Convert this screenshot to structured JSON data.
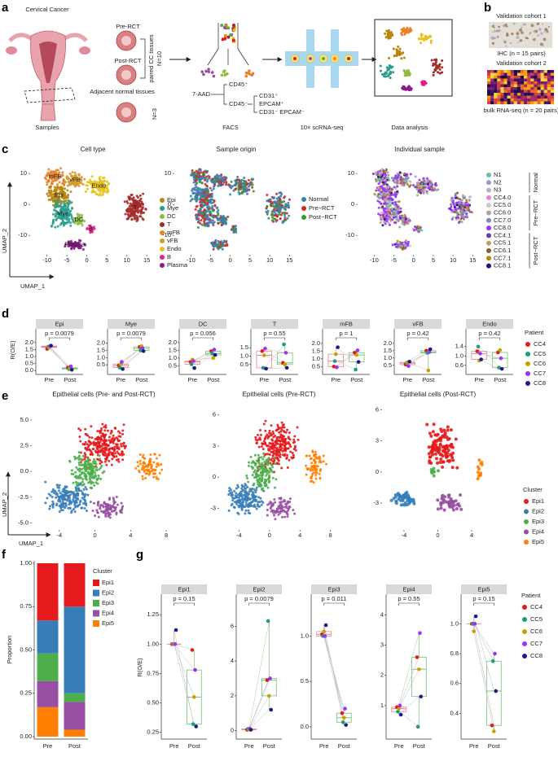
{
  "a": {
    "label": "a",
    "organ": "Cervical Cancer",
    "samples": "Samples",
    "pre": "Pre-RCT",
    "post": "Post-RCT",
    "paired": "paired CC tissues",
    "n10": "N=10",
    "adjacent": "Adjacent normal tissues",
    "n3": "N=3",
    "aad": "7-AAD",
    "cd45p": "CD45⁺",
    "cd45m": "CD45⁻",
    "cd31p": "CD31⁺",
    "epcamp": "EPCAM⁺",
    "cd31epcam": "CD31⁻ EPCAM⁻",
    "facs": "FACS",
    "seq": "10× scRNA-seq",
    "analysis": "Data analysis"
  },
  "b": {
    "label": "b",
    "cohort1": "Validation cohort 1",
    "ihc": "IHC (n = 15 pairs)",
    "cohort2": "Validation cohort 2",
    "bulk": "bulk RNA-seq (n = 20 pairs)"
  },
  "c": {
    "label": "c",
    "titles": [
      "Cell type",
      "Sample origin",
      "Individual sample"
    ],
    "xlabel": "UMAP_1",
    "ylabel": "UMAP_2",
    "xlim": [
      -14,
      17
    ],
    "ylim": [
      -16,
      14
    ],
    "xticks": [
      -10,
      -5,
      0,
      5,
      10,
      15
    ],
    "yticks": [
      -10,
      0,
      10
    ],
    "cell_types": [
      {
        "name": "Epi",
        "color": "#b8860b",
        "x": -7,
        "y": 3
      },
      {
        "name": "Mye",
        "color": "#2a9d8f",
        "x": -6,
        "y": -3
      },
      {
        "name": "DC",
        "color": "#8fbc3f",
        "x": -2,
        "y": -5
      },
      {
        "name": "T",
        "color": "#a52a2a",
        "x": 12,
        "y": -1
      },
      {
        "name": "mFB",
        "color": "#e8822a",
        "x": -8,
        "y": 9
      },
      {
        "name": "vFB",
        "color": "#d49a2a",
        "x": -3,
        "y": 8
      },
      {
        "name": "Endo",
        "color": "#e8c21a",
        "x": 3,
        "y": 6
      },
      {
        "name": "B",
        "color": "#e0218a",
        "x": 1,
        "y": -8
      },
      {
        "name": "Plasma",
        "color": "#8b1a8b",
        "x": -3,
        "y": -13
      }
    ],
    "origins": [
      {
        "name": "Normal",
        "color": "#3b7db5"
      },
      {
        "name": "Pre−RCT",
        "color": "#d62728"
      },
      {
        "name": "Post−RCT",
        "color": "#2ca02c"
      }
    ],
    "sample_groups": [
      {
        "name": "Normal",
        "samples": [
          {
            "name": "N1",
            "color": "#66c2a5"
          },
          {
            "name": "N2",
            "color": "#8da0cb"
          },
          {
            "name": "N3",
            "color": "#b3b3cc"
          }
        ]
      },
      {
        "name": "Pre−RCT",
        "samples": [
          {
            "name": "CC4.0",
            "color": "#e78ac3"
          },
          {
            "name": "CC5.0",
            "color": "#c9c9c9"
          },
          {
            "name": "CC6.0",
            "color": "#a6a6a6"
          },
          {
            "name": "CC7.0",
            "color": "#7a8fa6"
          },
          {
            "name": "CC8.0",
            "color": "#9b30ff"
          }
        ]
      },
      {
        "name": "Post−RCT",
        "samples": [
          {
            "name": "CC4.1",
            "color": "#6a3d9a"
          },
          {
            "name": "CC5.1",
            "color": "#c49a6c"
          },
          {
            "name": "CC6.1",
            "color": "#8b5a2b"
          },
          {
            "name": "CC7.1",
            "color": "#b8860b"
          },
          {
            "name": "CC8.1",
            "color": "#1a1a6e"
          }
        ]
      }
    ]
  },
  "d": {
    "label": "d",
    "ylabel": "R(O/E)",
    "groups": [
      "Pre",
      "Post"
    ],
    "box_colors": [
      "#e8868e",
      "#79c279"
    ],
    "legend_title": "Patient",
    "patients": [
      {
        "name": "CC4",
        "color": "#e41a1c"
      },
      {
        "name": "CC5",
        "color": "#1b9e77"
      },
      {
        "name": "CC6",
        "color": "#c8a000"
      },
      {
        "name": "CC7",
        "color": "#9b30ff"
      },
      {
        "name": "CC8",
        "color": "#1a1a8c"
      }
    ],
    "facets": [
      {
        "title": "Epi",
        "p": "p = 0.0079",
        "ylim": [
          -0.05,
          2.05
        ],
        "yticks": [
          {
            "value": 0,
            "label": "0.0"
          },
          0.5,
          {
            "value": 1,
            "label": "1.0"
          },
          1.5,
          {
            "value": 2,
            "label": "2.0"
          }
        ],
        "pre": [
          1.55,
          1.7,
          1.65,
          1.75,
          1.78
        ],
        "post": [
          0.2,
          0.1,
          0.15,
          0.3,
          0.05
        ]
      },
      {
        "title": "Mye",
        "p": "p = 0.0079",
        "ylim": [
          0.05,
          2.1
        ],
        "yticks": [
          0.5,
          {
            "value": 1,
            "label": "1.0"
          },
          1.5,
          {
            "value": 2,
            "label": "2.0"
          }
        ],
        "pre": [
          0.45,
          0.3,
          0.55,
          0.7,
          0.2
        ],
        "post": [
          1.75,
          1.5,
          1.8,
          1.65,
          1.45
        ]
      },
      {
        "title": "DC",
        "p": "p = 0.056",
        "ylim": [
          0.15,
          2.05
        ],
        "yticks": [
          0.5,
          {
            "value": 1,
            "label": "1.0"
          },
          1.5,
          {
            "value": 2,
            "label": "2.0"
          }
        ],
        "pre": [
          0.75,
          0.6,
          0.9,
          0.8,
          0.35
        ],
        "post": [
          1.45,
          1.3,
          1.0,
          1.55,
          1.2
        ]
      },
      {
        "title": "T",
        "p": "p = 0.55",
        "ylim": [
          0.1,
          1.85
        ],
        "yticks": [
          0.5,
          {
            "value": 1,
            "label": "1.0"
          },
          1.5
        ],
        "pre": [
          1.3,
          0.3,
          1.05,
          1.45,
          0.25
        ],
        "post": [
          0.6,
          1.7,
          0.5,
          1.2,
          0.3
        ]
      },
      {
        "title": "mFB",
        "p": "p = 1",
        "ylim": [
          0.2,
          2.1
        ],
        "yticks": [
          0.5,
          {
            "value": 1,
            "label": "1.0"
          },
          1.5,
          {
            "value": 2,
            "label": "2.0"
          }
        ],
        "pre": [
          0.5,
          0.85,
          1.3,
          0.45,
          1.75
        ],
        "post": [
          1.4,
          0.3,
          1.25,
          1.55,
          0.8
        ]
      },
      {
        "title": "vFB",
        "p": "p = 0.42",
        "ylim": [
          0.1,
          2.1
        ],
        "yticks": [
          0.5,
          {
            "value": 1,
            "label": "1.0"
          },
          1.5,
          {
            "value": 2,
            "label": "2.0"
          }
        ],
        "pre": [
          0.55,
          0.65,
          0.7,
          0.45,
          0.75
        ],
        "post": [
          1.5,
          1.35,
          0.15,
          1.4,
          1.6
        ]
      },
      {
        "title": "Endo",
        "p": "p = 0.42",
        "ylim": [
          0.35,
          1.6
        ],
        "yticks": [
          0.6,
          {
            "value": 1,
            "label": "1.0"
          },
          1.4
        ],
        "pre": [
          1.2,
          1.4,
          0.8,
          1.1,
          0.85
        ],
        "post": [
          1.15,
          0.5,
          1.25,
          0.9,
          0.45
        ]
      }
    ]
  },
  "e": {
    "label": "e",
    "xlabel": "UMAP_1",
    "ylabel": "UMAP_2",
    "legend_title": "Cluster",
    "clusters": [
      {
        "name": "Epi1",
        "color": "#e41a1c"
      },
      {
        "name": "Epi2",
        "color": "#377eb8"
      },
      {
        "name": "Epi3",
        "color": "#4daf4a"
      },
      {
        "name": "Epi4",
        "color": "#984ea3"
      },
      {
        "name": "Epi5",
        "color": "#ff7f00"
      }
    ],
    "plots": [
      {
        "title": "Epithelial cells (Pre- and Post-RCT)",
        "xlim": [
          -7,
          9
        ],
        "ylim": [
          -5.6,
          6.5
        ],
        "xticks": [
          -4,
          0,
          4,
          8
        ],
        "yticks": [
          {
            "value": -5,
            "label": "-5.0"
          },
          {
            "value": -2.5,
            "label": "-2.5"
          },
          {
            "value": 0,
            "label": "0.0"
          },
          {
            "value": 2.5,
            "label": "2.5"
          },
          {
            "value": 5,
            "label": "5.0"
          }
        ],
        "centers": [
          {
            "x": 1,
            "y": 2.5
          },
          {
            "x": -3,
            "y": -2.5
          },
          {
            "x": -1,
            "y": 0
          },
          {
            "x": 1.5,
            "y": -3.5
          },
          {
            "x": 6,
            "y": 0.5
          }
        ]
      },
      {
        "title": "Epithelial cells (Pre-RCT)",
        "xlim": [
          -6.5,
          9
        ],
        "ylim": [
          -5,
          7
        ],
        "xticks": [
          -4,
          0,
          4,
          8
        ],
        "yticks": [
          -3,
          0,
          3,
          6
        ],
        "centers": [
          {
            "x": 1,
            "y": 3
          },
          {
            "x": -3,
            "y": -2
          },
          {
            "x": -1,
            "y": 0.5
          },
          {
            "x": 1.5,
            "y": -3
          },
          {
            "x": 6,
            "y": 1
          }
        ]
      },
      {
        "title": "Epithelial cells (Post-RCT)",
        "xlim": [
          -6.5,
          6.5
        ],
        "ylim": [
          -5.5,
          6.5
        ],
        "xticks": [
          -4,
          0,
          4
        ],
        "yticks": [
          -3,
          0,
          3,
          6
        ],
        "centers": [
          {
            "x": 0.5,
            "y": 2.5
          },
          {
            "x": -4,
            "y": -2.5
          },
          {
            "x": -0.5,
            "y": 0
          },
          {
            "x": 1.5,
            "y": -3
          },
          {
            "x": 5,
            "y": 0
          }
        ]
      }
    ]
  },
  "f": {
    "label": "f",
    "ylabel": "Proportion",
    "legend_title": "Cluster",
    "categories": [
      "Pre",
      "Post"
    ],
    "ylim": [
      0,
      1
    ],
    "yticks": [
      {
        "value": 0,
        "label": "0.00"
      },
      {
        "value": 0.25,
        "label": "0.25"
      },
      {
        "value": 0.5,
        "label": "0.50"
      },
      {
        "value": 0.75,
        "label": "0.75"
      },
      {
        "value": 1,
        "label": "1.00"
      }
    ],
    "series": [
      {
        "name": "Epi1",
        "color": "#e41a1c",
        "values": [
          0.33,
          0.25
        ]
      },
      {
        "name": "Epi2",
        "color": "#377eb8",
        "values": [
          0.19,
          0.5
        ]
      },
      {
        "name": "Epi3",
        "color": "#4daf4a",
        "values": [
          0.16,
          0.05
        ]
      },
      {
        "name": "Epi4",
        "color": "#984ea3",
        "values": [
          0.15,
          0.16
        ]
      },
      {
        "name": "Epi5",
        "color": "#ff7f00",
        "values": [
          0.17,
          0.04
        ]
      }
    ]
  },
  "g": {
    "label": "g",
    "ylabel": "R(O/E)",
    "groups": [
      "Pre",
      "Post"
    ],
    "box_colors": [
      "#e8868e",
      "#79c279"
    ],
    "legend_title": "Patient",
    "patients": [
      {
        "name": "CC4",
        "color": "#e41a1c"
      },
      {
        "name": "CC5",
        "color": "#1b9e77"
      },
      {
        "name": "CC6",
        "color": "#c8a000"
      },
      {
        "name": "CC7",
        "color": "#9b30ff"
      },
      {
        "name": "CC8",
        "color": "#1a1a8c"
      }
    ],
    "facets": [
      {
        "title": "Epi1",
        "p": "p = 0.15",
        "ylim": [
          0.22,
          1.3
        ],
        "yticks": [
          0.25,
          {
            "value": 0.5,
            "label": "0.50"
          },
          0.75,
          {
            "value": 1,
            "label": "1.00"
          },
          1.25
        ],
        "pre": [
          1.0,
          1.0,
          1.0,
          1.0,
          1.12
        ],
        "post": [
          0.95,
          0.32,
          0.55,
          0.78,
          0.3
        ]
      },
      {
        "title": "Epi2",
        "p": "p = 0.0079",
        "ylim": [
          -0.3,
          7
        ],
        "yticks": [
          0,
          2,
          4,
          6
        ],
        "pre": [
          0.05,
          0.1,
          0.05,
          0.1,
          0.05
        ],
        "post": [
          2.9,
          6.3,
          2.0,
          3.0,
          1.2
        ]
      },
      {
        "title": "Epi3",
        "p": "p = 0.011",
        "ylim": [
          -0.1,
          1.3
        ],
        "yticks": [
          {
            "value": 0,
            "label": "0.0"
          },
          0.5,
          {
            "value": 1,
            "label": "1.0"
          }
        ],
        "pre": [
          1.02,
          1.0,
          1.05,
          1.0,
          1.12
        ],
        "post": [
          0.15,
          0.05,
          0.1,
          0.2,
          0.02
        ]
      },
      {
        "title": "Epi4",
        "p": "p = 0.55",
        "ylim": [
          0,
          4.2
        ],
        "yticks": [
          1,
          2,
          3,
          4
        ],
        "pre": [
          0.95,
          0.8,
          0.9,
          1.0,
          0.7
        ],
        "post": [
          2.6,
          0.3,
          2.2,
          3.4,
          1.3
        ]
      },
      {
        "title": "Epi5",
        "p": "p = 0.15",
        "ylim": [
          0.25,
          1.1
        ],
        "yticks": [
          0.4,
          0.6,
          0.8,
          {
            "value": 1,
            "label": "1.0"
          }
        ],
        "pre": [
          1.0,
          1.0,
          0.95,
          1.0,
          1.05
        ],
        "post": [
          0.32,
          0.75,
          0.28,
          0.8,
          0.55
        ]
      }
    ]
  }
}
